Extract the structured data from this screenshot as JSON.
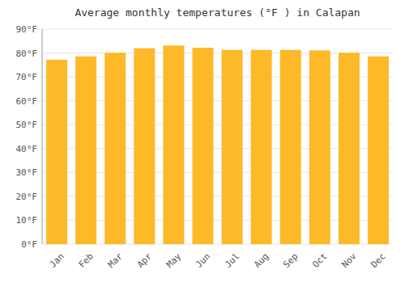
{
  "chart_data": {
    "type": "bar",
    "title": "Average monthly temperatures (°F ) in Calapan",
    "categories": [
      "Jan",
      "Feb",
      "Mar",
      "Apr",
      "May",
      "Jun",
      "Jul",
      "Aug",
      "Sep",
      "Oct",
      "Nov",
      "Dec"
    ],
    "values": [
      77.2,
      78.6,
      80.1,
      82.0,
      83.1,
      82.2,
      81.3,
      81.3,
      81.3,
      81.1,
      80.1,
      78.6
    ],
    "color": "#FDB927",
    "ylim": [
      0,
      90
    ],
    "yticks": [
      {
        "value": 0,
        "label": "0°F"
      },
      {
        "value": 10,
        "label": "10°F"
      },
      {
        "value": 20,
        "label": "20°F"
      },
      {
        "value": 30,
        "label": "30°F"
      },
      {
        "value": 40,
        "label": "40°F"
      },
      {
        "value": 50,
        "label": "50°F"
      },
      {
        "value": 60,
        "label": "60°F"
      },
      {
        "value": 70,
        "label": "70°F"
      },
      {
        "value": 80,
        "label": "80°F"
      },
      {
        "value": 90,
        "label": "90°F"
      }
    ],
    "grid": true
  }
}
